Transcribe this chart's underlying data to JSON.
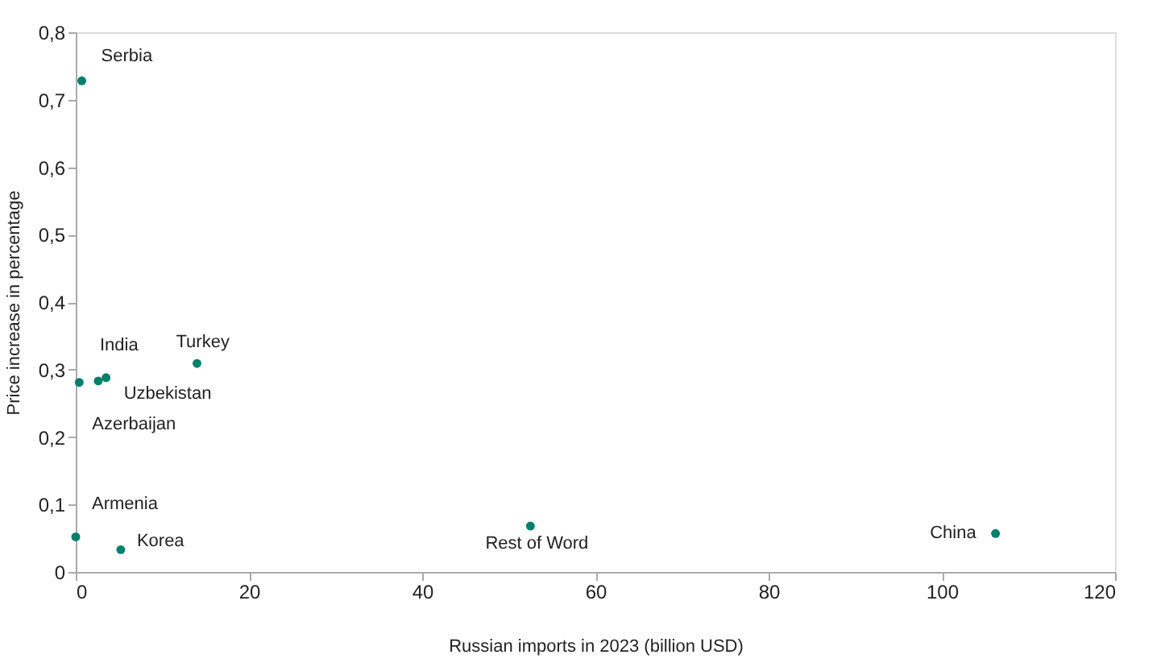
{
  "chart_data": {
    "type": "scatter",
    "xlabel": "Russian imports in 2023 (billion USD)",
    "ylabel": "Price increase in percentage",
    "x": [
      0.7,
      0.4,
      2.6,
      3.5,
      14.0,
      0.0,
      5.2,
      52.5,
      106.2
    ],
    "series": [
      {
        "color": "#00806a",
        "values": [
          0.728,
          0.281,
          0.283,
          0.288,
          0.309,
          0.052,
          0.033,
          0.068,
          0.057
        ]
      }
    ],
    "annotations": [
      {
        "text": "Serbia",
        "x": 0.7,
        "y": 0.728
      },
      {
        "text": "Azerbaijan",
        "x": 0.4,
        "y": 0.281
      },
      {
        "text": "India",
        "x": 2.6,
        "y": 0.283
      },
      {
        "text": "Uzbekistan",
        "x": 3.5,
        "y": 0.288
      },
      {
        "text": "Turkey",
        "x": 14.0,
        "y": 0.309
      },
      {
        "text": "Armenia",
        "x": 0.0,
        "y": 0.052
      },
      {
        "text": "Korea",
        "x": 5.2,
        "y": 0.033
      },
      {
        "text": "Rest of Word",
        "x": 52.5,
        "y": 0.068
      },
      {
        "text": "China",
        "x": 106.2,
        "y": 0.057
      }
    ],
    "xlim": [
      0,
      120
    ],
    "xticks": [
      0,
      20,
      40,
      60,
      80,
      100,
      120
    ],
    "ylim": [
      0,
      0.8
    ],
    "yticks": [
      0,
      {
        "value": 0.1,
        "label": "0,1"
      },
      {
        "value": 0.2,
        "label": "0,2"
      },
      {
        "value": 0.3,
        "label": "0,3"
      },
      {
        "value": 0.4,
        "label": "0,4"
      },
      {
        "value": 0.5,
        "label": "0,5"
      },
      {
        "value": 0.6,
        "label": "0,6"
      },
      {
        "value": 0.7,
        "label": "0,7"
      },
      {
        "value": 0.8,
        "label": "0,8"
      }
    ],
    "grid": false,
    "marker": "circle"
  }
}
